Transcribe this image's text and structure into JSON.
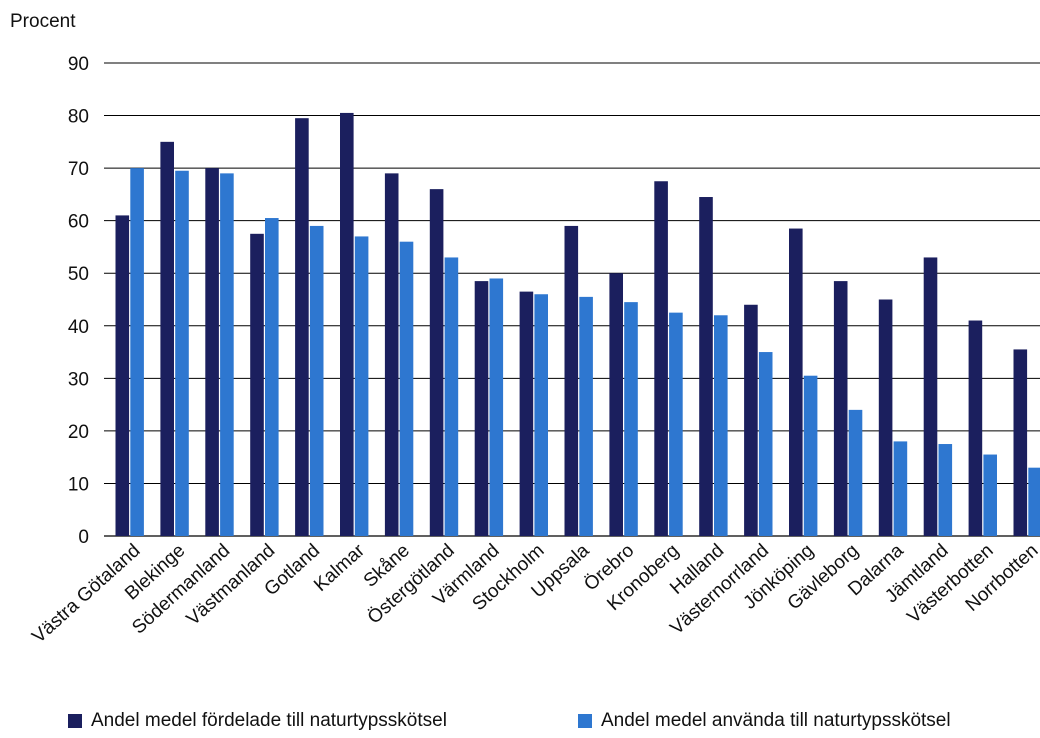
{
  "chart_data": {
    "type": "bar",
    "ylabel": "Procent",
    "ylim": [
      0,
      90
    ],
    "yticks": [
      0,
      10,
      20,
      30,
      40,
      50,
      60,
      70,
      80,
      90
    ],
    "grid": true,
    "legend_position": "bottom",
    "categories": [
      "Västra Götaland",
      "Blekinge",
      "Södermanland",
      "Västmanland",
      "Gotland",
      "Kalmar",
      "Skåne",
      "Östergötland",
      "Värmland",
      "Stockholm",
      "Uppsala",
      "Örebro",
      "Kronoberg",
      "Halland",
      "Västernorrland",
      "Jönköping",
      "Gävleborg",
      "Dalarna",
      "Jämtland",
      "Västerbotten",
      "Norrbotten"
    ],
    "series": [
      {
        "name": "Andel medel fördelade till naturtypsskötsel",
        "color": "#1b1f5e",
        "values": [
          61,
          75,
          70,
          57.5,
          79.5,
          80.5,
          69,
          66,
          48.5,
          46.5,
          59,
          50,
          67.5,
          64.5,
          44,
          58.5,
          48.5,
          45,
          53,
          41,
          35.5
        ]
      },
      {
        "name": "Andel medel använda till naturtypsskötsel",
        "color": "#2e77d0",
        "values": [
          70,
          69.5,
          69,
          60.5,
          59,
          57,
          56,
          53,
          49,
          46,
          45.5,
          44.5,
          42.5,
          42,
          35,
          30.5,
          24,
          18,
          17.5,
          15.5,
          13
        ]
      }
    ]
  }
}
